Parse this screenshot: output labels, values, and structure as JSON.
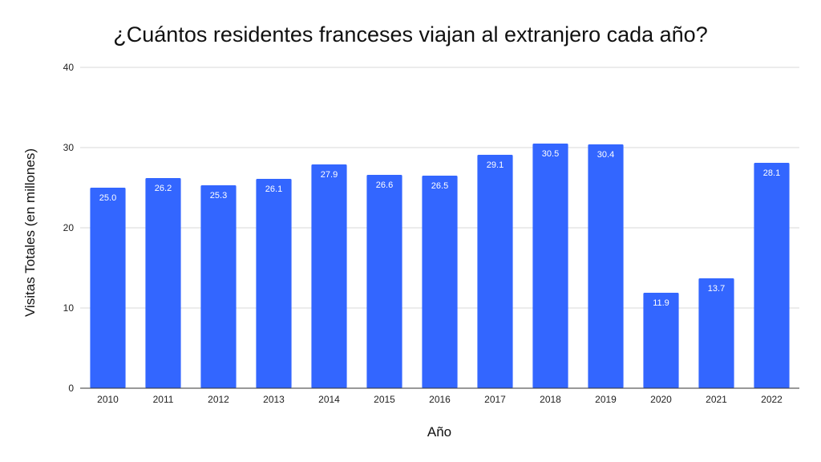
{
  "chart_data": {
    "type": "bar",
    "title": "¿Cuántos residentes franceses viajan al extranjero cada año?",
    "xlabel": "Año",
    "ylabel": "Visitas Totales (en millones)",
    "categories": [
      "2010",
      "2011",
      "2012",
      "2013",
      "2014",
      "2015",
      "2016",
      "2017",
      "2018",
      "2019",
      "2020",
      "2021",
      "2022"
    ],
    "values": [
      25.0,
      26.2,
      25.3,
      26.1,
      27.9,
      26.6,
      26.5,
      29.1,
      30.5,
      30.4,
      11.9,
      13.7,
      28.1
    ],
    "value_labels": [
      "25.0",
      "26.2",
      "25.3",
      "26.1",
      "27.9",
      "26.6",
      "26.5",
      "29.1",
      "30.5",
      "30.4",
      "11.9",
      "13.7",
      "28.1"
    ],
    "ylim": [
      0,
      40
    ],
    "yticks": [
      "0",
      "10",
      "20",
      "30",
      "40"
    ],
    "grid": true,
    "legend": "none",
    "colors": {
      "bar": "#3366ff",
      "grid": "#d9d9d9",
      "axis": "#333333"
    }
  }
}
